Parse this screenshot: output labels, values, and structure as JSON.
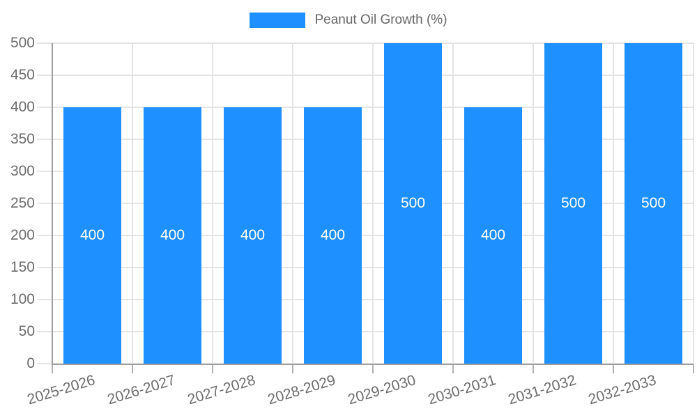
{
  "chart_data": {
    "type": "bar",
    "title": "",
    "categories": [
      "2025-2026",
      "2026-2027",
      "2027-2028",
      "2028-2029",
      "2029-2030",
      "2030-2031",
      "2031-2032",
      "2032-2033"
    ],
    "series": [
      {
        "name": "Peanut Oil Growth (%)",
        "values": [
          400,
          400,
          400,
          400,
          500,
          400,
          500,
          500
        ]
      }
    ],
    "bar_value_labels": [
      "400",
      "400",
      "400",
      "400",
      "500",
      "400",
      "500",
      "500"
    ],
    "xlabel": "",
    "ylabel": "",
    "ylim": [
      0,
      500
    ],
    "ytick_step": 50,
    "yticks": [
      0,
      50,
      100,
      150,
      200,
      250,
      300,
      350,
      400,
      450,
      500
    ],
    "legend_position": "top-center",
    "grid": "horizontal-and-vertical",
    "x_label_rotation_deg": -17,
    "colors": {
      "bar": "#1E90FF",
      "bar_label_text": "#FFFFFF",
      "axis_text": "#6D6D6D",
      "legend_text": "#666666",
      "grid_line": "#E4E4E4",
      "axis_line": "#9E9E9E",
      "x_tick_mark": "#B3B3B3",
      "background": "#FFFFFF"
    }
  }
}
